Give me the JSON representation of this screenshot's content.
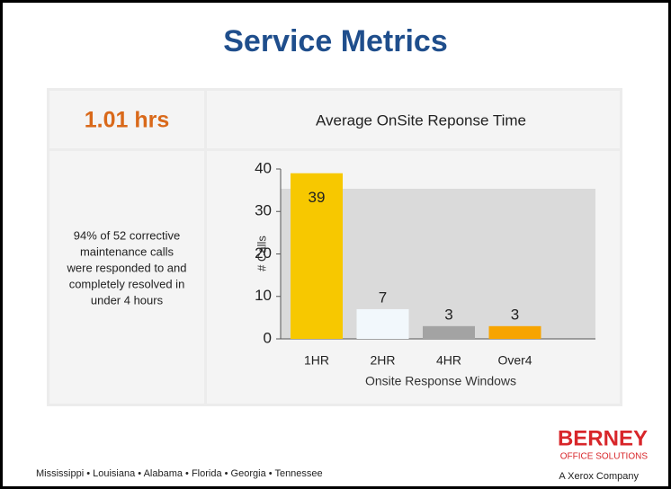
{
  "slide_title": "Service Metrics",
  "metric": "1.01 hrs",
  "description": [
    "94% of 52  corrective",
    "maintenance calls",
    "were responded to and",
    "completely resolved in",
    "under 4 hours"
  ],
  "footer": "Mississippi  •  Louisiana  •  Alabama  •  Florida  •  Georgia  •  Tennessee",
  "logo": {
    "name": "BERNEY",
    "sub": "OFFICE SOLUTIONS",
    "tagline": "A Xerox Company"
  },
  "chart_data": {
    "type": "bar",
    "title": "Average OnSite Reponse Time",
    "x_label": "Onsite Response Windows",
    "y_label": "# Calls",
    "categories": [
      "1HR",
      "2HR",
      "4HR",
      "Over4"
    ],
    "values": [
      39,
      7,
      3,
      3
    ],
    "colors": [
      "#f7c800",
      "#f2f8fc",
      "#a3a3a3",
      "#f7a400"
    ],
    "ylim": [
      0,
      40
    ],
    "yticks": [
      0,
      10,
      20,
      30,
      40
    ]
  }
}
